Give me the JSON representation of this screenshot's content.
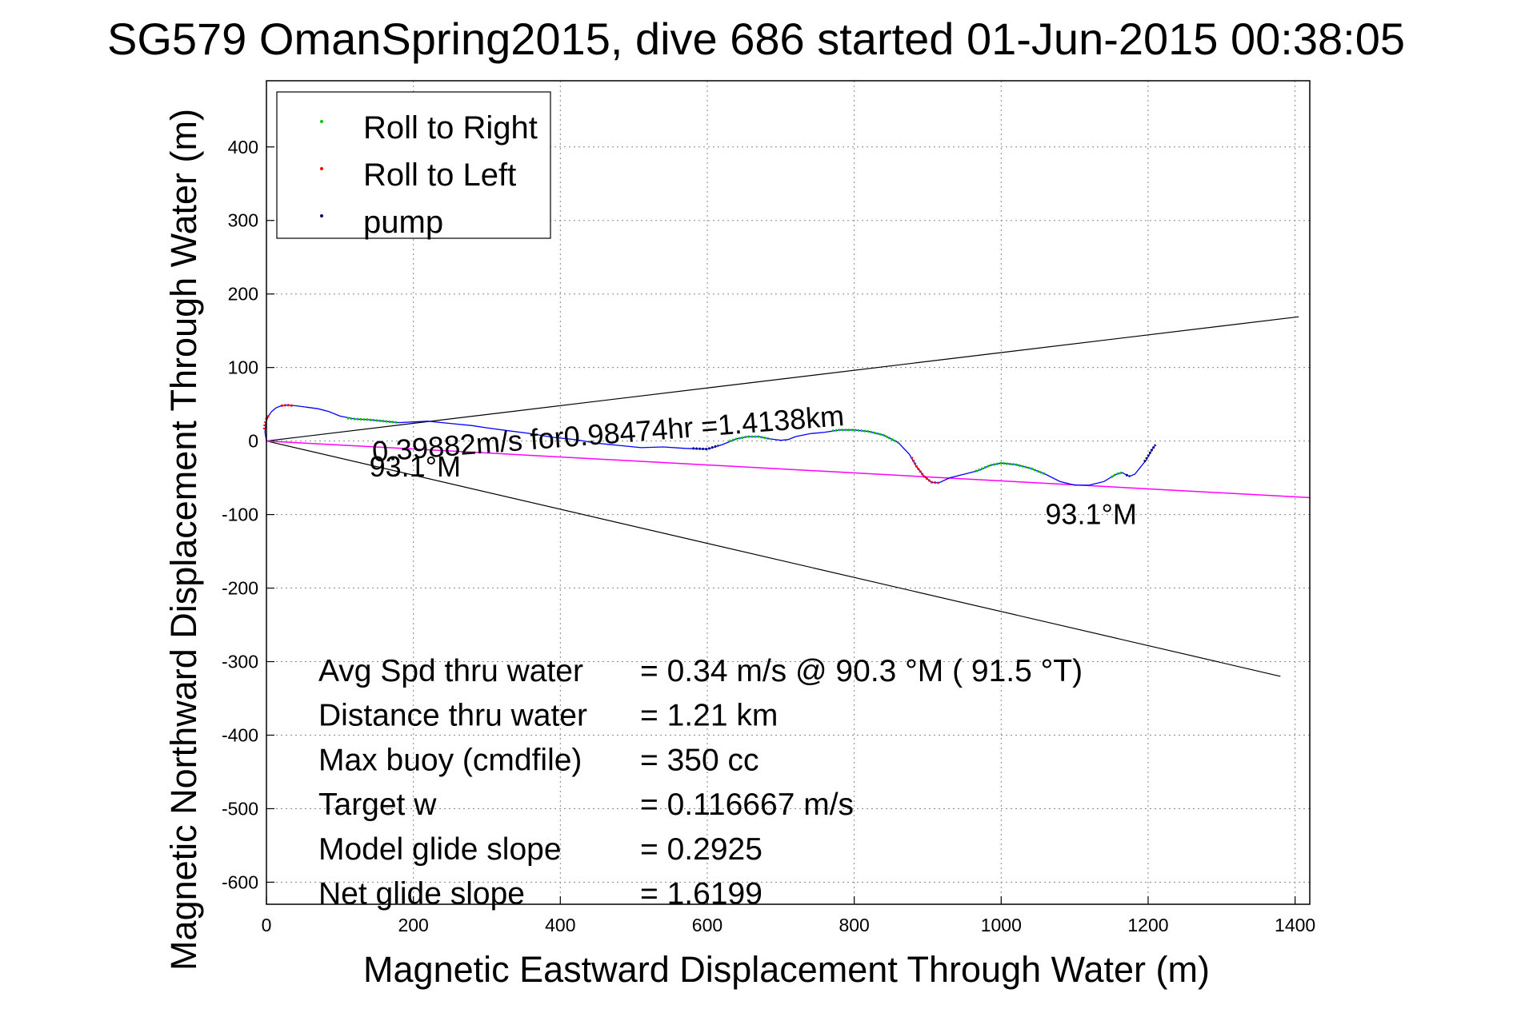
{
  "chart_data": {
    "type": "scatter",
    "title": "SG579 OmanSpring2015, dive 686 started 01-Jun-2015 00:38:05",
    "xlabel": "Magnetic Eastward Displacement Through Water (m)",
    "ylabel": "Magnetic Northward Displacement Through Water (m)",
    "xlim": [
      0,
      1420
    ],
    "ylim": [
      -630,
      490
    ],
    "xticks": [
      0,
      200,
      400,
      600,
      800,
      1000,
      1200,
      1400
    ],
    "yticks": [
      400,
      300,
      200,
      100,
      0,
      -100,
      -200,
      -300,
      -400,
      -500,
      -600
    ],
    "grid": true,
    "legend_position": "top-left",
    "legend": [
      {
        "label": "Roll to Right",
        "color": "#00cc00"
      },
      {
        "label": "Roll to Left",
        "color": "#ff0000"
      },
      {
        "label": "pump",
        "color": "#000066"
      }
    ],
    "colors": {
      "track": "#0000ff",
      "right": "#00cc00",
      "left": "#ff0000",
      "pump": "#000066",
      "heading": "#ff00ff",
      "cone": "#000000"
    },
    "track": [
      [
        0,
        0
      ],
      [
        -2,
        12
      ],
      [
        -1,
        24
      ],
      [
        2,
        33
      ],
      [
        7,
        40
      ],
      [
        13,
        45
      ],
      [
        20,
        48
      ],
      [
        28,
        49
      ],
      [
        40,
        48
      ],
      [
        55,
        46
      ],
      [
        70,
        44
      ],
      [
        85,
        40
      ],
      [
        100,
        34
      ],
      [
        120,
        30
      ],
      [
        140,
        29
      ],
      [
        160,
        27
      ],
      [
        180,
        25
      ],
      [
        200,
        26
      ],
      [
        220,
        27
      ],
      [
        250,
        24
      ],
      [
        280,
        21
      ],
      [
        300,
        18
      ],
      [
        330,
        14
      ],
      [
        360,
        10
      ],
      [
        390,
        5
      ],
      [
        420,
        2
      ],
      [
        450,
        -3
      ],
      [
        480,
        -6
      ],
      [
        510,
        -9
      ],
      [
        540,
        -8
      ],
      [
        570,
        -10
      ],
      [
        600,
        -11
      ],
      [
        620,
        -5
      ],
      [
        640,
        3
      ],
      [
        655,
        6
      ],
      [
        670,
        6
      ],
      [
        685,
        3
      ],
      [
        700,
        1
      ],
      [
        710,
        2
      ],
      [
        720,
        6
      ],
      [
        740,
        10
      ],
      [
        760,
        12
      ],
      [
        780,
        15
      ],
      [
        800,
        15
      ],
      [
        820,
        13
      ],
      [
        840,
        8
      ],
      [
        860,
        -2
      ],
      [
        875,
        -18
      ],
      [
        885,
        -35
      ],
      [
        895,
        -48
      ],
      [
        905,
        -56
      ],
      [
        915,
        -57
      ],
      [
        930,
        -50
      ],
      [
        950,
        -45
      ],
      [
        970,
        -40
      ],
      [
        985,
        -33
      ],
      [
        1000,
        -30
      ],
      [
        1020,
        -32
      ],
      [
        1040,
        -37
      ],
      [
        1060,
        -45
      ],
      [
        1080,
        -55
      ],
      [
        1100,
        -60
      ],
      [
        1120,
        -60
      ],
      [
        1140,
        -55
      ],
      [
        1155,
        -46
      ],
      [
        1160,
        -44
      ],
      [
        1165,
        -43
      ],
      [
        1170,
        -46
      ],
      [
        1175,
        -48
      ],
      [
        1182,
        -45
      ],
      [
        1190,
        -35
      ],
      [
        1198,
        -25
      ],
      [
        1205,
        -12
      ],
      [
        1210,
        -5
      ]
    ],
    "roll_right_segments": [
      [
        [
          110,
          31
        ],
        [
          120,
          30
        ],
        [
          140,
          29
        ],
        [
          160,
          27
        ],
        [
          180,
          25
        ]
      ],
      [
        [
          630,
          0
        ],
        [
          640,
          3
        ],
        [
          655,
          6
        ],
        [
          670,
          6
        ],
        [
          685,
          3
        ]
      ],
      [
        [
          770,
          14
        ],
        [
          780,
          15
        ],
        [
          800,
          15
        ],
        [
          820,
          13
        ],
        [
          840,
          8
        ],
        [
          860,
          -2
        ]
      ],
      [
        [
          965,
          -41
        ],
        [
          985,
          -33
        ],
        [
          1000,
          -30
        ],
        [
          1020,
          -32
        ],
        [
          1040,
          -37
        ],
        [
          1060,
          -45
        ]
      ],
      [
        [
          1150,
          -49
        ],
        [
          1155,
          -46
        ],
        [
          1160,
          -44
        ],
        [
          1165,
          -43
        ]
      ]
    ],
    "roll_left_segments": [
      [
        [
          -3,
          16
        ],
        [
          -2,
          24
        ],
        [
          0,
          30
        ],
        [
          4,
          36
        ]
      ],
      [
        [
          20,
          48
        ],
        [
          28,
          49
        ],
        [
          36,
          48
        ]
      ],
      [
        [
          878,
          -22
        ],
        [
          885,
          -35
        ],
        [
          895,
          -48
        ],
        [
          905,
          -56
        ],
        [
          915,
          -57
        ]
      ]
    ],
    "pump_segments": [
      [
        [
          580,
          -10
        ],
        [
          600,
          -11
        ],
        [
          615,
          -6
        ]
      ],
      [
        [
          1170,
          -46
        ],
        [
          1175,
          -48
        ]
      ],
      [
        [
          1195,
          -28
        ],
        [
          1200,
          -20
        ],
        [
          1205,
          -12
        ],
        [
          1210,
          -5
        ]
      ]
    ],
    "heading_line": [
      [
        0,
        0
      ],
      [
        1420,
        -77
      ]
    ],
    "cone_lines": [
      [
        [
          0,
          0
        ],
        [
          1405,
          169
        ]
      ],
      [
        [
          0,
          0
        ],
        [
          1380,
          -320
        ]
      ]
    ],
    "annotations": [
      {
        "text": "0.39882m/s for0.98474hr =1.4138km",
        "x": 145,
        "y": -28,
        "rotate": -4.4
      },
      {
        "text": "93.1°M",
        "x": 140,
        "y": -48
      },
      {
        "text": "93.1°M",
        "x": 1060,
        "y": -113
      }
    ],
    "stats": [
      {
        "label": "Avg Spd thru water",
        "value": "=  0.34 m/s @  90.3 °M ( 91.5 °T)"
      },
      {
        "label": "Distance thru water",
        "value": "=  1.21 km"
      },
      {
        "label": "Max buoy (cmdfile)",
        "value": "= 350 cc"
      },
      {
        "label": "Target w",
        "value": "= 0.116667 m/s"
      },
      {
        "label": "Model glide slope",
        "value": "= 0.2925"
      },
      {
        "label": "Net glide slope",
        "value": "= 1.6199"
      }
    ]
  }
}
